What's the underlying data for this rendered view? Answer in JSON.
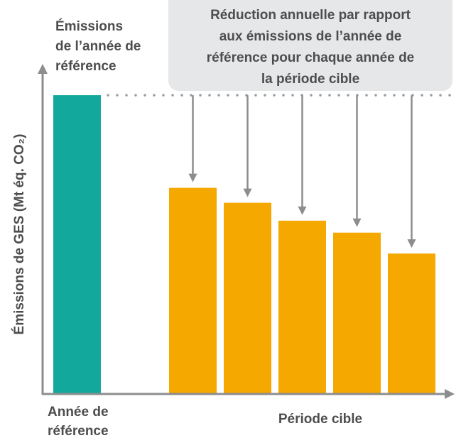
{
  "chart_data": {
    "type": "bar",
    "categories": [
      null,
      null,
      null,
      null,
      null,
      null
    ],
    "values": [
      100,
      69,
      64,
      58,
      54,
      47
    ],
    "colors": [
      "#12a99c",
      "#f5a800",
      "#f5a800",
      "#f5a800",
      "#f5a800",
      "#f5a800"
    ],
    "ylim": [
      0,
      110
    ],
    "y_label": "Émissions de GES (Mt éq. CO₂)",
    "reference_label": [
      "Émissions",
      "de l’année de",
      "référence"
    ],
    "callout": [
      "Réduction annuelle par rapport",
      "aux émissions de l’année de",
      "référence pour chaque année de",
      "la période cible"
    ],
    "groups": [
      {
        "label": [
          "Année de",
          "référence"
        ]
      },
      {
        "label": [
          "Période cible"
        ]
      }
    ]
  }
}
